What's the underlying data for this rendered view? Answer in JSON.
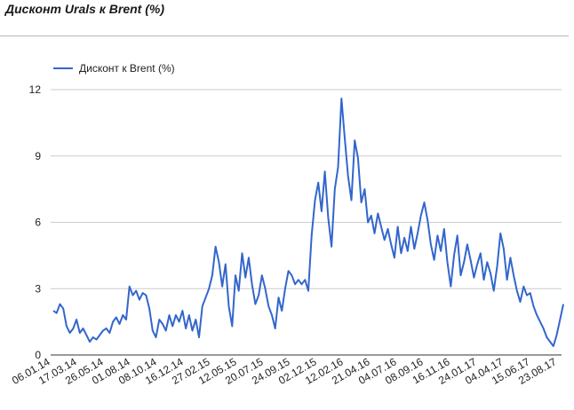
{
  "page": {
    "title": "Дисконт Urals к Brent (%)"
  },
  "chart_data": {
    "type": "line",
    "title": "Дисконт Urals к Brent (%)",
    "xlabel": "",
    "ylabel": "",
    "legend_position": "top-left",
    "grid": true,
    "ylim": [
      0,
      12
    ],
    "y_ticks": [
      0,
      3,
      6,
      9,
      12
    ],
    "x_tick_labels": [
      "06.01.14",
      "17.03.14",
      "26.05.14",
      "01.08.14",
      "08.10.14",
      "16.12.14",
      "27.02.15",
      "12.05.15",
      "20.07.15",
      "24.09.15",
      "02.12.15",
      "12.02.16",
      "21.04.16",
      "04.07.16",
      "08.09.16",
      "16.11.16",
      "24.01.17",
      "04.04.17",
      "15.06.17",
      "23.08.17"
    ],
    "line_color": "#3366cc",
    "series": [
      {
        "name": "Дисконт к Brent (%)",
        "values": [
          2.0,
          1.9,
          2.3,
          2.1,
          1.3,
          1.0,
          1.2,
          1.6,
          1.0,
          1.2,
          0.9,
          0.6,
          0.8,
          0.7,
          0.9,
          1.1,
          1.2,
          1.0,
          1.5,
          1.7,
          1.4,
          1.8,
          1.6,
          3.1,
          2.7,
          2.9,
          2.5,
          2.8,
          2.7,
          2.1,
          1.1,
          0.8,
          1.6,
          1.4,
          1.1,
          1.8,
          1.3,
          1.8,
          1.5,
          2.0,
          1.2,
          1.8,
          1.1,
          1.6,
          0.8,
          2.2,
          2.6,
          3.0,
          3.6,
          4.9,
          4.2,
          3.1,
          4.1,
          2.2,
          1.3,
          3.6,
          2.9,
          4.6,
          3.5,
          4.4,
          3.2,
          2.3,
          2.7,
          3.6,
          3.0,
          2.2,
          1.8,
          1.2,
          2.6,
          2.0,
          3.0,
          3.8,
          3.6,
          3.2,
          3.4,
          3.2,
          3.4,
          2.9,
          5.4,
          7.0,
          7.8,
          6.5,
          8.3,
          6.2,
          4.9,
          7.5,
          8.5,
          11.6,
          9.8,
          8.1,
          7.0,
          9.7,
          8.9,
          6.9,
          7.5,
          6.0,
          6.3,
          5.5,
          6.4,
          5.8,
          5.2,
          5.7,
          5.0,
          4.4,
          5.8,
          4.6,
          5.3,
          4.7,
          5.8,
          4.8,
          5.5,
          6.3,
          6.9,
          6.1,
          5.0,
          4.3,
          5.4,
          4.7,
          5.7,
          4.2,
          3.1,
          4.5,
          5.4,
          3.6,
          4.2,
          5.0,
          4.3,
          3.5,
          4.1,
          4.6,
          3.4,
          4.2,
          3.7,
          2.9,
          4.0,
          5.5,
          4.8,
          3.4,
          4.4,
          3.6,
          2.9,
          2.4,
          3.1,
          2.7,
          2.8,
          2.2,
          1.8,
          1.5,
          1.2,
          0.8,
          0.6,
          0.4,
          0.9,
          1.6,
          2.3
        ]
      }
    ]
  }
}
